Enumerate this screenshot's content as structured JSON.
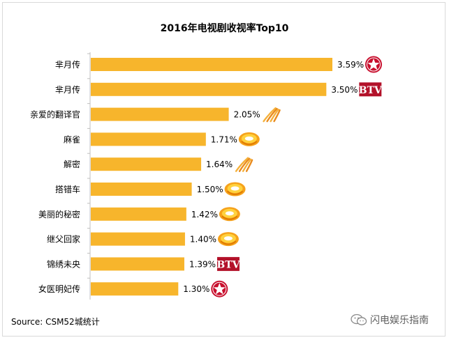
{
  "chart_data": {
    "type": "bar",
    "orientation": "horizontal",
    "title": "2016年电视剧收视率Top10",
    "categories": [
      "芈月传",
      "芈月传",
      "亲爱的翻译官",
      "麻雀",
      "解密",
      "搭错车",
      "美丽的秘密",
      "继父回家",
      "锦绣未央",
      "女医明妃传"
    ],
    "values": [
      3.59,
      3.5,
      2.05,
      1.71,
      1.64,
      1.5,
      1.42,
      1.4,
      1.39,
      1.3
    ],
    "value_labels": [
      "3.59%",
      "3.50%",
      "2.05%",
      "1.71%",
      "1.64%",
      "1.50%",
      "1.42%",
      "1.40%",
      "1.39%",
      "1.30%"
    ],
    "channel_icons": [
      "star-logo-icon",
      "btv-logo-icon",
      "swirl-logo-icon",
      "mango-logo-icon",
      "swirl-logo-icon",
      "mango-logo-icon",
      "mango-logo-icon",
      "mango-logo-icon",
      "btv-logo-icon",
      "star-logo-icon"
    ],
    "btv_text": "BTV",
    "xlim": [
      0,
      3.8
    ],
    "bar_color": "#f7b52c",
    "axis_color": "#bfbfbf"
  },
  "source": "Source: CSM52城统计",
  "watermark": "闪电娱乐指南"
}
